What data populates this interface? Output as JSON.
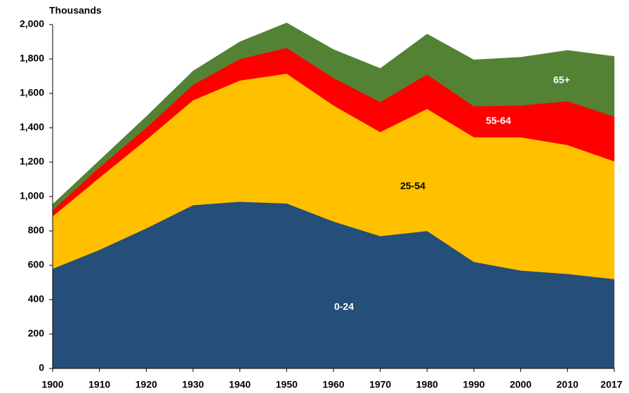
{
  "chart_data": {
    "type": "stacked-area",
    "y_label": "Thousands",
    "categories": [
      "1900",
      "1910",
      "1920",
      "1930",
      "1940",
      "1950",
      "1960",
      "1970",
      "1980",
      "1990",
      "2000",
      "2010",
      "2017"
    ],
    "series": [
      {
        "name": "0-24",
        "color": "#254e78",
        "values": [
          580,
          690,
          815,
          950,
          970,
          960,
          855,
          770,
          800,
          620,
          570,
          550,
          520
        ]
      },
      {
        "name": "25-54",
        "color": "#ffc000",
        "values": [
          305,
          420,
          515,
          610,
          705,
          755,
          675,
          605,
          710,
          725,
          775,
          750,
          685
        ]
      },
      {
        "name": "55-64",
        "color": "#ff0000",
        "values": [
          35,
          60,
          70,
          90,
          125,
          150,
          160,
          175,
          200,
          180,
          185,
          255,
          260
        ]
      },
      {
        "name": "65+",
        "color": "#548235",
        "values": [
          35,
          40,
          65,
          80,
          100,
          145,
          165,
          195,
          235,
          270,
          280,
          295,
          350
        ]
      }
    ],
    "ylim": [
      0,
      2000
    ],
    "yticks": [
      0,
      {
        "value": 200,
        "label": "200"
      },
      400,
      600,
      800,
      {
        "value": 1000,
        "label": "1,000"
      },
      {
        "value": 1200,
        "label": "1,200"
      },
      {
        "value": 1400,
        "label": "1,400"
      },
      {
        "value": 1600,
        "label": "1,600"
      },
      {
        "value": 1800,
        "label": "1,800"
      },
      {
        "value": 2000,
        "label": "2,000"
      }
    ],
    "grid": false
  }
}
